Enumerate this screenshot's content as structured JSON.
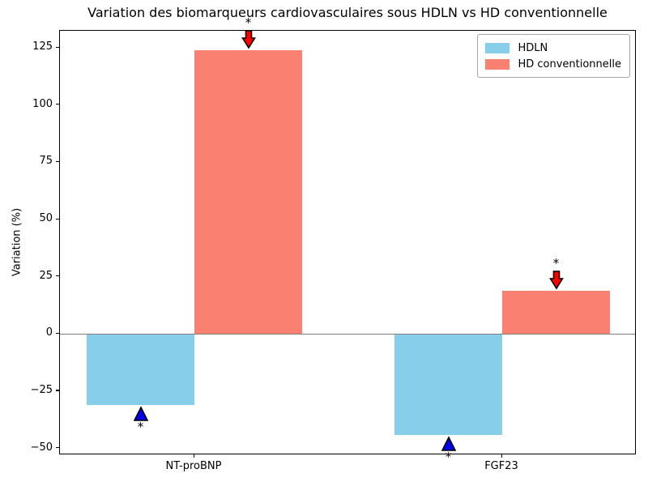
{
  "chart_data": {
    "type": "bar",
    "title": "Variation des biomarqueurs cardiovasculaires sous HDLN vs HD conventionnelle",
    "xlabel": "",
    "ylabel": "Variation (%)",
    "categories": [
      "NT-proBNP",
      "FGF23"
    ],
    "series": [
      {
        "name": "HDLN",
        "color": "#87CEEB",
        "values": [
          -31,
          -44
        ],
        "significance": [
          "*",
          "*"
        ],
        "marker": {
          "shape": "triangle-up",
          "color": "#0000EE",
          "edge": "#000000"
        }
      },
      {
        "name": "HD conventionnelle",
        "color": "#FA8072",
        "values": [
          124,
          19
        ],
        "significance": [
          "*",
          "*"
        ],
        "marker": {
          "shape": "arrow-down",
          "color": "#FF0000",
          "edge": "#000000"
        }
      }
    ],
    "ylim": [
      -53,
      132.5
    ],
    "ytick_values": [
      125,
      100,
      75,
      50,
      25,
      0,
      -25,
      -50
    ],
    "ytick_labels": [
      "125",
      "100",
      "75",
      "50",
      "25",
      "0",
      "−25",
      "−50"
    ],
    "zero_line": true,
    "zero_line_color": "#808080",
    "grid": false,
    "legend": {
      "position": "upper right",
      "labels": [
        "HDLN",
        "HD conventionnelle"
      ]
    }
  }
}
